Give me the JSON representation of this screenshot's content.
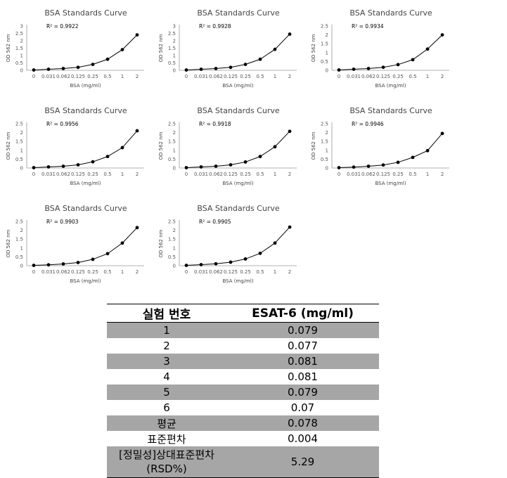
{
  "chart_data": [
    {
      "type": "line",
      "title": "BSA Standards Curve",
      "xlabel": "BSA (mg/ml)",
      "ylabel": "OD 562 nm",
      "categories": [
        "0",
        "0.031",
        "0.062",
        "0.125",
        "0.25",
        "0.5",
        "1",
        "2"
      ],
      "values": [
        0.02,
        0.07,
        0.12,
        0.2,
        0.4,
        0.75,
        1.4,
        2.4
      ],
      "yticks": [
        "0",
        "0.5",
        "1",
        "1.5",
        "2",
        "2.5",
        "3"
      ],
      "ylim": [
        0,
        3
      ],
      "r2": "R² = 0.9922",
      "grid": false
    },
    {
      "type": "line",
      "title": "BSA Standards Curve",
      "xlabel": "BSA (mg/ml)",
      "ylabel": "OD 562 nm",
      "categories": [
        "0",
        "0.031",
        "0.062",
        "0.125",
        "0.25",
        "0.5",
        "1",
        "2"
      ],
      "values": [
        0.02,
        0.07,
        0.12,
        0.2,
        0.4,
        0.75,
        1.42,
        2.45
      ],
      "yticks": [
        "0",
        "0.5",
        "1",
        "1.5",
        "2",
        "2.5",
        "3"
      ],
      "ylim": [
        0,
        3
      ],
      "r2": "R² = 0.9928",
      "grid": false
    },
    {
      "type": "line",
      "title": "BSA Standards Curve",
      "xlabel": "BSA (mg/ml)",
      "ylabel": "OD 562 nm",
      "categories": [
        "0",
        "0.031",
        "0.062",
        "0.125",
        "0.25",
        "0.5",
        "1",
        "2"
      ],
      "values": [
        0.02,
        0.06,
        0.1,
        0.17,
        0.32,
        0.6,
        1.2,
        2.0
      ],
      "yticks": [
        "0",
        "0.5",
        "1",
        "1.5",
        "2",
        "2.5"
      ],
      "ylim": [
        0,
        2.5
      ],
      "r2": "R² = 0.9934",
      "grid": false
    },
    {
      "type": "line",
      "title": "BSA Standards Curve",
      "xlabel": "BSA (mg/ml)",
      "ylabel": "OD 562 nm",
      "categories": [
        "0",
        "0.031",
        "0.062",
        "0.125",
        "0.25",
        "0.5",
        "1",
        "2"
      ],
      "values": [
        0.02,
        0.06,
        0.1,
        0.18,
        0.35,
        0.65,
        1.15,
        2.1
      ],
      "yticks": [
        "0",
        "0.5",
        "1",
        "1.5",
        "2",
        "2.5"
      ],
      "ylim": [
        0,
        2.5
      ],
      "r2": "R² = 0.9956",
      "grid": false
    },
    {
      "type": "line",
      "title": "BSA Standards Curve",
      "xlabel": "BSA (mg/ml)",
      "ylabel": "OD 562 nm",
      "categories": [
        "0",
        "0.031",
        "0.062",
        "0.125",
        "0.25",
        "0.5",
        "1",
        "2"
      ],
      "values": [
        0.02,
        0.06,
        0.1,
        0.18,
        0.34,
        0.65,
        1.2,
        2.07
      ],
      "yticks": [
        "0",
        "0.5",
        "1",
        "1.5",
        "2",
        "2.5"
      ],
      "ylim": [
        0,
        2.5
      ],
      "r2": "R² = 0.9918",
      "grid": false
    },
    {
      "type": "line",
      "title": "BSA Standards Curve",
      "xlabel": "BSA (mg/ml)",
      "ylabel": "OD 562 nm",
      "categories": [
        "0",
        "0.031",
        "0.062",
        "0.125",
        "0.25",
        "0.5",
        "1",
        "2"
      ],
      "values": [
        0.02,
        0.05,
        0.1,
        0.17,
        0.32,
        0.6,
        0.98,
        1.95
      ],
      "yticks": [
        "0",
        "0.5",
        "1",
        "1.5",
        "2",
        "2.5"
      ],
      "ylim": [
        0,
        2.5
      ],
      "r2": "R² = 0.9946",
      "grid": false
    },
    {
      "type": "line",
      "title": "BSA Standards Curve",
      "xlabel": "BSA (mg/ml)",
      "ylabel": "OD 562 nm",
      "categories": [
        "0",
        "0.031",
        "0.062",
        "0.125",
        "0.25",
        "0.5",
        "1",
        "2"
      ],
      "values": [
        0.02,
        0.05,
        0.1,
        0.18,
        0.36,
        0.68,
        1.28,
        2.15
      ],
      "yticks": [
        "0",
        "0.5",
        "1",
        "1.5",
        "2",
        "2.5"
      ],
      "ylim": [
        0,
        2.5
      ],
      "r2": "R² = 0.9903",
      "grid": false
    },
    {
      "type": "line",
      "title": "BSA Standards Curve",
      "xlabel": "BSA (mg/ml)",
      "ylabel": "OD 562 nm",
      "categories": [
        "0",
        "0.031",
        "0.062",
        "0.125",
        "0.25",
        "0.5",
        "1",
        "2"
      ],
      "values": [
        0.02,
        0.06,
        0.11,
        0.2,
        0.38,
        0.7,
        1.28,
        2.18
      ],
      "yticks": [
        "0",
        "0.5",
        "1",
        "1.5",
        "2",
        "2.5"
      ],
      "ylim": [
        0,
        2.5
      ],
      "r2": "R² = 0.9905",
      "grid": false
    }
  ],
  "table": {
    "headers": [
      "실험 번호",
      "ESAT-6 (mg/ml)"
    ],
    "rows": [
      {
        "label": "1",
        "value": "0.079"
      },
      {
        "label": "2",
        "value": "0.077"
      },
      {
        "label": "3",
        "value": "0.081"
      },
      {
        "label": "4",
        "value": "0.081"
      },
      {
        "label": "5",
        "value": "0.079"
      },
      {
        "label": "6",
        "value": "0.07"
      },
      {
        "label": "평균",
        "value": "0.078"
      },
      {
        "label": "표준편차",
        "value": "0.004"
      },
      {
        "label": "[정밀성]상대표준편차 (RSD%)",
        "value": "5.29"
      }
    ],
    "shade_color": "#a6a6a6"
  }
}
